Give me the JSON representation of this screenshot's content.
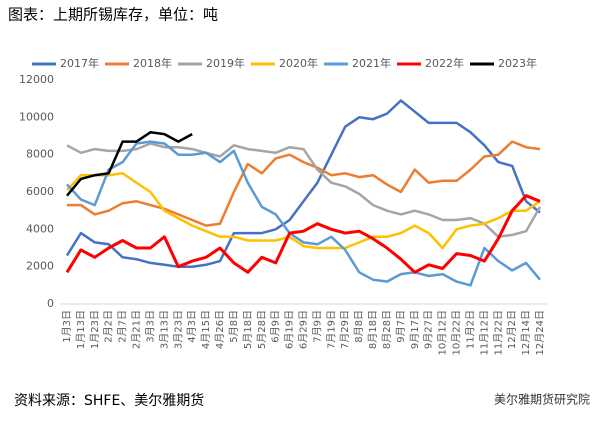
{
  "chart_data": {
    "type": "line",
    "title": "图表：上期所锡库存，单位：吨",
    "source": "资料来源：SHFE、美尔雅期货",
    "watermark": "美尔雅期货研究院",
    "categories": [
      "1月3日",
      "1月13日",
      "1月23日",
      "2月2日",
      "2月7日",
      "2月21日",
      "3月3日",
      "3月13日",
      "3月23日",
      "4月3日",
      "4月15日",
      "4月26日",
      "5月8日",
      "5月18日",
      "5月28日",
      "6月9日",
      "6月19日",
      "6月29日",
      "7月9日",
      "7月19日",
      "7月29日",
      "8月8日",
      "8月18日",
      "8月28日",
      "9月7日",
      "9月17日",
      "9月27日",
      "10月12日",
      "10月22日",
      "11月2日",
      "11月12日",
      "11月22日",
      "12月2日",
      "12月14日",
      "12月24日"
    ],
    "ylim": [
      0,
      12000
    ],
    "yticks": [
      0,
      2000,
      4000,
      6000,
      8000,
      10000,
      12000
    ],
    "grid": false,
    "legend": "top",
    "series": [
      {
        "name": "2017年",
        "color": "#4472c4",
        "values": [
          2600,
          3800,
          3300,
          3200,
          2500,
          2400,
          2200,
          2100,
          2000,
          2000,
          2100,
          2300,
          3800,
          3800,
          3800,
          4000,
          4500,
          5500,
          6500,
          8000,
          9500,
          10000,
          9900,
          10200,
          10900,
          10300,
          9700,
          9700,
          9700,
          9200,
          8500,
          7600,
          7400,
          5500,
          4900
        ]
      },
      {
        "name": "2018年",
        "color": "#ed7d31",
        "values": [
          5300,
          5300,
          4800,
          5000,
          5400,
          5500,
          5300,
          5100,
          4800,
          4500,
          4200,
          4300,
          6000,
          7500,
          7000,
          7800,
          8000,
          7600,
          7300,
          6900,
          7000,
          6800,
          6900,
          6400,
          6000,
          7200,
          6500,
          6600,
          6600,
          7200,
          7900,
          8000,
          8700,
          8400,
          8300
        ]
      },
      {
        "name": "2019年",
        "color": "#a5a5a5",
        "values": [
          8500,
          8100,
          8300,
          8200,
          8200,
          8300,
          8600,
          8400,
          8400,
          8300,
          8100,
          7900,
          8500,
          8300,
          8200,
          8100,
          8400,
          8300,
          7200,
          6500,
          6300,
          5900,
          5300,
          5000,
          4800,
          5000,
          4800,
          4500,
          4500,
          4600,
          4300,
          3600,
          3700,
          3900,
          5200
        ]
      },
      {
        "name": "2020年",
        "color": "#ffc000",
        "values": [
          6100,
          6900,
          6900,
          6900,
          7000,
          6500,
          6000,
          5000,
          4600,
          4200,
          3900,
          3600,
          3600,
          3400,
          3400,
          3400,
          3600,
          3100,
          3000,
          3000,
          3000,
          3300,
          3600,
          3600,
          3800,
          4200,
          3800,
          3000,
          4000,
          4200,
          4300,
          4600,
          5000,
          5000,
          5500
        ]
      },
      {
        "name": "2021年",
        "color": "#5b9bd5",
        "values": [
          6400,
          5600,
          5300,
          7200,
          7600,
          8600,
          8700,
          8600,
          8000,
          8000,
          8100,
          7600,
          8200,
          6500,
          5200,
          4800,
          3800,
          3300,
          3200,
          3600,
          2900,
          1700,
          1300,
          1200,
          1600,
          1700,
          1500,
          1600,
          1200,
          1000,
          3000,
          2300,
          1800,
          2200,
          1300
        ]
      },
      {
        "name": "2022年",
        "color": "#ff0000",
        "values": [
          1700,
          2900,
          2500,
          3000,
          3400,
          3000,
          3000,
          3600,
          2000,
          2300,
          2500,
          3000,
          2200,
          1700,
          2500,
          2200,
          3800,
          3900,
          4300,
          4000,
          3800,
          3900,
          3500,
          3000,
          2400,
          1700,
          2100,
          1900,
          2700,
          2600,
          2300,
          3500,
          5000,
          5800,
          5500
        ]
      },
      {
        "name": "2023年",
        "color": "#000000",
        "values": [
          5800,
          6700,
          6900,
          7000,
          8700,
          8700,
          9200,
          9100,
          8700,
          9100,
          null,
          null,
          null,
          null,
          null,
          null,
          null,
          null,
          null,
          null,
          null,
          null,
          null,
          null,
          null,
          null,
          null,
          null,
          null,
          null,
          null,
          null,
          null,
          null,
          null
        ]
      }
    ]
  }
}
